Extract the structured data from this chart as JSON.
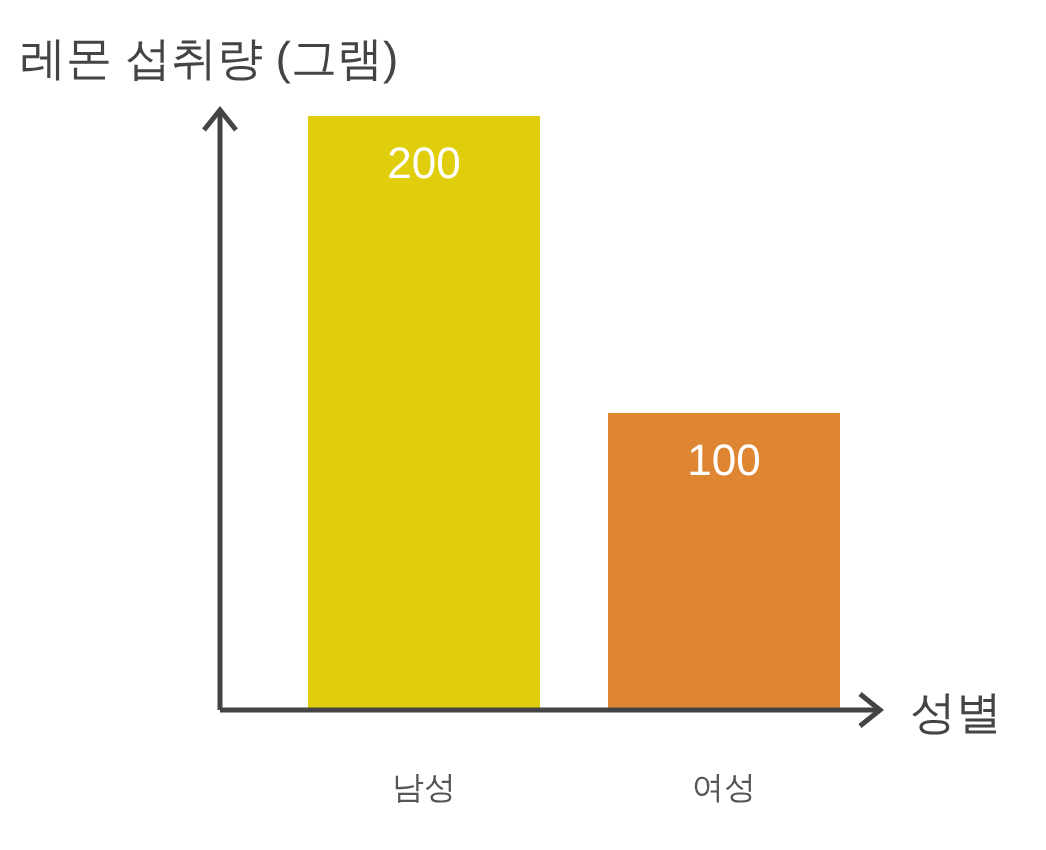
{
  "chart_data": {
    "type": "bar",
    "ylabel": "레몬 섭취량 (그램)",
    "xlabel": "성별",
    "categories": [
      "남성",
      "여성"
    ],
    "values": [
      200,
      100
    ],
    "colors": [
      "#e0cd0b",
      "#de8632"
    ],
    "data_labels": true,
    "grid": false
  }
}
